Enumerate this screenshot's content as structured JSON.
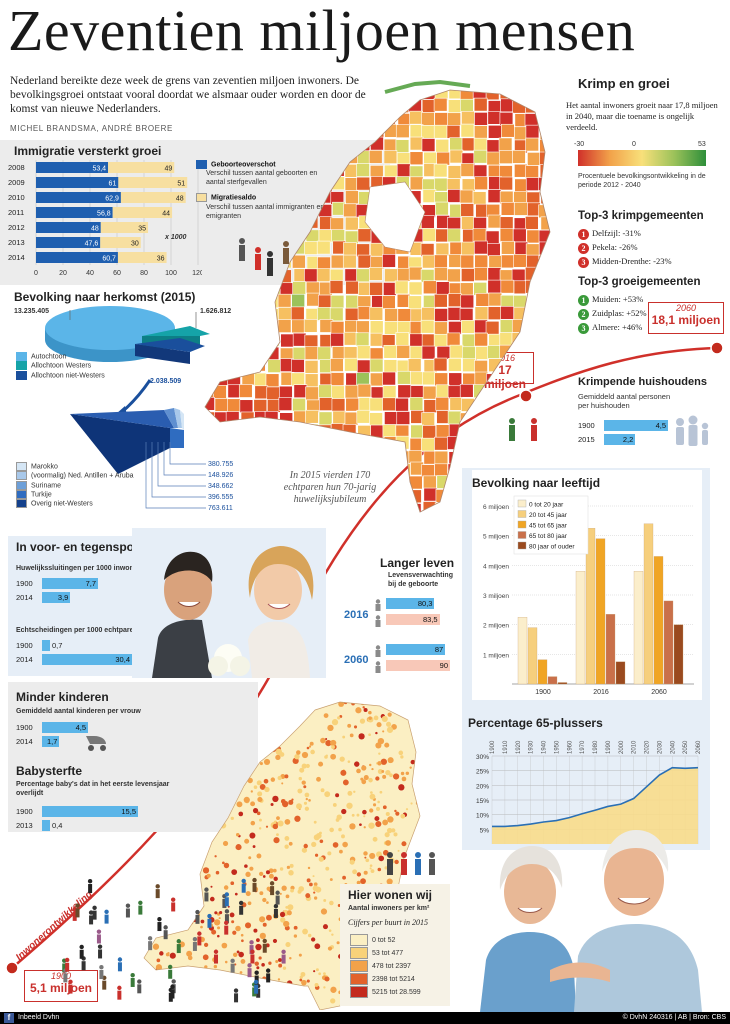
{
  "header": {
    "title": "Zeventien miljoen mensen",
    "intro": "Nederland bereikte deze week de grens van zeventien miljoen inwoners. De bevolkingsgroei ontstaat vooral doordat we alsmaar ouder worden en door de komst van nieuwe Nederlanders.",
    "byline": "MICHEL BRANDSMA, ANDRÉ BROERE"
  },
  "immigratie": {
    "title": "Immigratie versterkt groei",
    "legend_a_title": "Geboorteoverschot",
    "legend_a_desc": "Verschil tussen aantal geboorten en aantal sterfgevallen",
    "legend_b_title": "Migratiesaldo",
    "legend_b_desc": "Verschil tussen aantal immigranten en emigranten",
    "unit": "x 1000",
    "colors": {
      "a": "#1f5fb0",
      "b": "#f7dfa0"
    }
  },
  "herkomst": {
    "title": "Bevolking naar herkomst (2015)",
    "val_autochtoon": "13.235.405",
    "val_westers": "1.626.812",
    "val_nietwesters": "2.038.509",
    "legend": [
      "Autochtoon",
      "Allochtoon Westers",
      "Allochtoon niet-Westers"
    ],
    "colors": [
      "#5bb5e8",
      "#15a3a8",
      "#1a4f9c"
    ],
    "sub_legend": [
      "Marokko",
      "(voormalig) Ned. Antillen + Aruba",
      "Suriname",
      "Turkije",
      "Overig niet-Westers"
    ],
    "sub_values": [
      "380.755",
      "148.926",
      "348.662",
      "396.555",
      "763.611"
    ],
    "sub_colors": [
      "#d5e6f5",
      "#a8c8ea",
      "#6d9fd8",
      "#2f6cc0",
      "#14418c"
    ]
  },
  "krimp": {
    "title": "Krimp en groei",
    "desc": "Het aantal inwoners groeit naar 17,8 miljoen in 2040, maar die toename is ongelijk verdeeld.",
    "scale_min": "-30",
    "scale_mid": "0",
    "scale_max": "53",
    "scale_desc": "Procentuele bevolkingsontwikkeling in de periode 2012 - 2040",
    "krimp_title": "Top-3 krimpgemeenten",
    "krimp_items": [
      "Delfzijl: -31%",
      "Pekela: -26%",
      "Midden-Drenthe: -23%"
    ],
    "groei_title": "Top-3 groeigemeenten",
    "groei_items": [
      "Muiden: +53%",
      "Zuidplas: +52%",
      "Almere: +46%"
    ],
    "badge_red": "#d0302a",
    "badge_green": "#3a9a3a"
  },
  "badges": [
    "1",
    "2",
    "3"
  ],
  "timeline": {
    "label": "Inwonerontwikkeling",
    "c1900_year": "1900",
    "c1900_val": "5,1 miljoen",
    "c2016_year": "2016",
    "c2016_val": "17 miljoen",
    "c2060_year": "2060",
    "c2060_val": "18,1 miljoen"
  },
  "huishoudens": {
    "title": "Krimpende huishoudens",
    "desc": "Gemiddeld aantal personen per huishouden",
    "rows": [
      {
        "year": "1900",
        "value": 4.5,
        "label": "4,5"
      },
      {
        "year": "2015",
        "value": 2.2,
        "label": "2,2"
      }
    ]
  },
  "jubileum": "In 2015 vierden 170 echtparen hun 70-jarig huwelijksjubileum",
  "voorspoed": {
    "title": "In voor- en tegenspoed",
    "hw_title": "Huwelijkssluitingen per 1000 inwoners",
    "hw_rows": [
      {
        "year": "1900",
        "value": 7.7,
        "label": "7,7"
      },
      {
        "year": "2014",
        "value": 3.9,
        "label": "3,9"
      }
    ],
    "ec_title": "Echtscheidingen per 1000 echtparen",
    "ec_rows": [
      {
        "year": "1900",
        "value": 0.7,
        "label": "0,7"
      },
      {
        "year": "2014",
        "value": 30.4,
        "label": "30,4"
      }
    ]
  },
  "langer": {
    "title": "Langer leven",
    "desc": "Levensverwachting bij de geboorte",
    "y2016": "2016",
    "y2060": "2060",
    "rows2016": [
      {
        "value": 80.3,
        "label": "80,3"
      },
      {
        "value": 83.5,
        "label": "83,5"
      }
    ],
    "rows2060": [
      {
        "value": 87,
        "label": "87"
      },
      {
        "value": 90,
        "label": "90"
      }
    ]
  },
  "kinderen": {
    "title": "Minder kinderen",
    "desc": "Gemiddeld aantal kinderen per vrouw",
    "rows": [
      {
        "year": "1900",
        "value": 4.5,
        "label": "4,5"
      },
      {
        "year": "2014",
        "value": 1.7,
        "label": "1,7"
      }
    ]
  },
  "babysterfte": {
    "title": "Babysterfte",
    "desc": "Percentage baby's dat in het eerste levensjaar overlijdt",
    "rows": [
      {
        "year": "1900",
        "value": 15.5,
        "label": "15,5"
      },
      {
        "year": "2013",
        "value": 0.4,
        "label": "0,4"
      }
    ]
  },
  "hierwonen": {
    "title": "Hier wonen wij",
    "desc": "Aantal inwoners per km²",
    "sub": "Cijfers per buurt in 2015",
    "legend": [
      "0 tot 52",
      "53 tot 477",
      "478 tot 2397",
      "2398 tot 5214",
      "5215 tot 28.599"
    ],
    "colors": [
      "#fbefc3",
      "#f8d27a",
      "#f2a24a",
      "#e2622b",
      "#c32a1d"
    ]
  },
  "leeftijd": {
    "title": "Bevolking naar leeftijd",
    "legend": [
      "0 tot 20 jaar",
      "20 tot 45 jaar",
      "45 tot 65 jaar",
      "65 tot 80 jaar",
      "80 jaar of ouder"
    ],
    "colors": [
      "#fbeecb",
      "#f6cf7d",
      "#f0a524",
      "#c9704a",
      "#9a4a1f"
    ]
  },
  "plus65": {
    "title": "Percentage 65-plussers"
  },
  "footer": {
    "left": "Inbeeld Dvhn",
    "right": "© DvhN 240316 | AB | Bron: CBS"
  },
  "chart_data": [
    {
      "type": "bar",
      "name": "immigratie",
      "categories": [
        "2008",
        "2009",
        "2010",
        "2011",
        "2012",
        "2013",
        "2014"
      ],
      "series": [
        {
          "name": "Geboorteoverschot",
          "values": [
            53.4,
            61,
            62.9,
            56.8,
            48,
            47.6,
            60.7
          ],
          "labels": [
            "53,4",
            "61",
            "62,9",
            "56,8",
            "48",
            "47,6",
            "60,7"
          ]
        },
        {
          "name": "Migratiesaldo",
          "values": [
            49,
            51,
            48,
            44,
            35,
            30,
            36
          ],
          "labels": [
            "49",
            "51",
            "48",
            "44",
            "35",
            "30",
            "36"
          ]
        }
      ],
      "x_ticks": [
        "0",
        "20",
        "40",
        "60",
        "80",
        "100",
        "120"
      ],
      "xlim": [
        0,
        120
      ]
    },
    {
      "type": "bar",
      "name": "leeftijd",
      "categories": [
        "1900",
        "2016",
        "2060"
      ],
      "series": [
        {
          "name": "0 tot 20 jaar",
          "values": [
            2.25,
            3.8,
            3.8
          ]
        },
        {
          "name": "20 tot 45 jaar",
          "values": [
            1.9,
            5.25,
            5.4
          ]
        },
        {
          "name": "45 tot 65 jaar",
          "values": [
            0.82,
            4.9,
            4.3
          ]
        },
        {
          "name": "65 tot 80 jaar",
          "values": [
            0.25,
            2.35,
            2.8
          ]
        },
        {
          "name": "80 jaar of ouder",
          "values": [
            0.05,
            0.75,
            2.0
          ]
        }
      ],
      "y_ticks": [
        "1 miljoen",
        "2 miljoen",
        "3 miljoen",
        "4 miljoen",
        "5 miljoen",
        "6 miljoen"
      ],
      "ylim": [
        0,
        6
      ]
    },
    {
      "type": "area",
      "name": "plus65",
      "x": [
        1900,
        1910,
        1920,
        1930,
        1940,
        1950,
        1960,
        1970,
        1980,
        1990,
        2000,
        2010,
        2020,
        2030,
        2040,
        2050,
        2060
      ],
      "values": [
        6,
        6,
        6.3,
        6.8,
        7.5,
        8,
        9,
        10.3,
        11.5,
        12.8,
        13.6,
        15.5,
        19.5,
        23.5,
        26,
        25.8,
        26
      ],
      "x_ticks": [
        "1900",
        "1910",
        "1920",
        "1930",
        "1940",
        "1950",
        "1960",
        "1970",
        "1980",
        "1990",
        "2000",
        "2010",
        "2020",
        "2030",
        "2040",
        "2050",
        "2060"
      ],
      "y_ticks": [
        "5%",
        "10%",
        "15%",
        "20%",
        "25%",
        "30%"
      ],
      "ylim": [
        0,
        30
      ]
    }
  ]
}
